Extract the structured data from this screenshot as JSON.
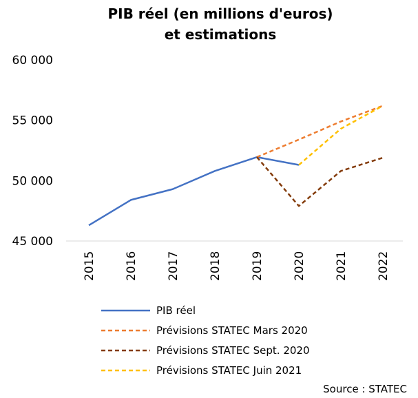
{
  "chart_data": {
    "type": "line",
    "title": "PIB réel (en millions d'euros)",
    "subtitle": "et estimations",
    "xlabel": "",
    "ylabel": "",
    "categories": [
      "2015",
      "2016",
      "2017",
      "2018",
      "2019",
      "2020",
      "2021",
      "2022"
    ],
    "y_ticks": [
      "45 000",
      "50 000",
      "55 000",
      "60 000"
    ],
    "ylim": [
      45000,
      60000
    ],
    "grid": false,
    "legend_position": "bottom",
    "source": "Source : STATEC",
    "series": [
      {
        "name": "PIB réel",
        "color": "#4472C4",
        "dash": "solid",
        "values": [
          46300,
          48400,
          49300,
          50800,
          51950,
          51300,
          null,
          null
        ]
      },
      {
        "name": "Prévisions STATEC Mars 2020",
        "color": "#ED7D31",
        "dash": "dashed",
        "values": [
          null,
          null,
          null,
          null,
          51950,
          53400,
          54900,
          56200
        ]
      },
      {
        "name": "Prévisions STATEC Sept. 2020",
        "color": "#843C0C",
        "dash": "dashed",
        "values": [
          null,
          null,
          null,
          null,
          51950,
          47900,
          50800,
          51900
        ]
      },
      {
        "name": "Prévisions STATEC Juin 2021",
        "color": "#FFC000",
        "dash": "dashed",
        "values": [
          null,
          null,
          null,
          null,
          null,
          51300,
          54300,
          56200
        ]
      }
    ]
  }
}
